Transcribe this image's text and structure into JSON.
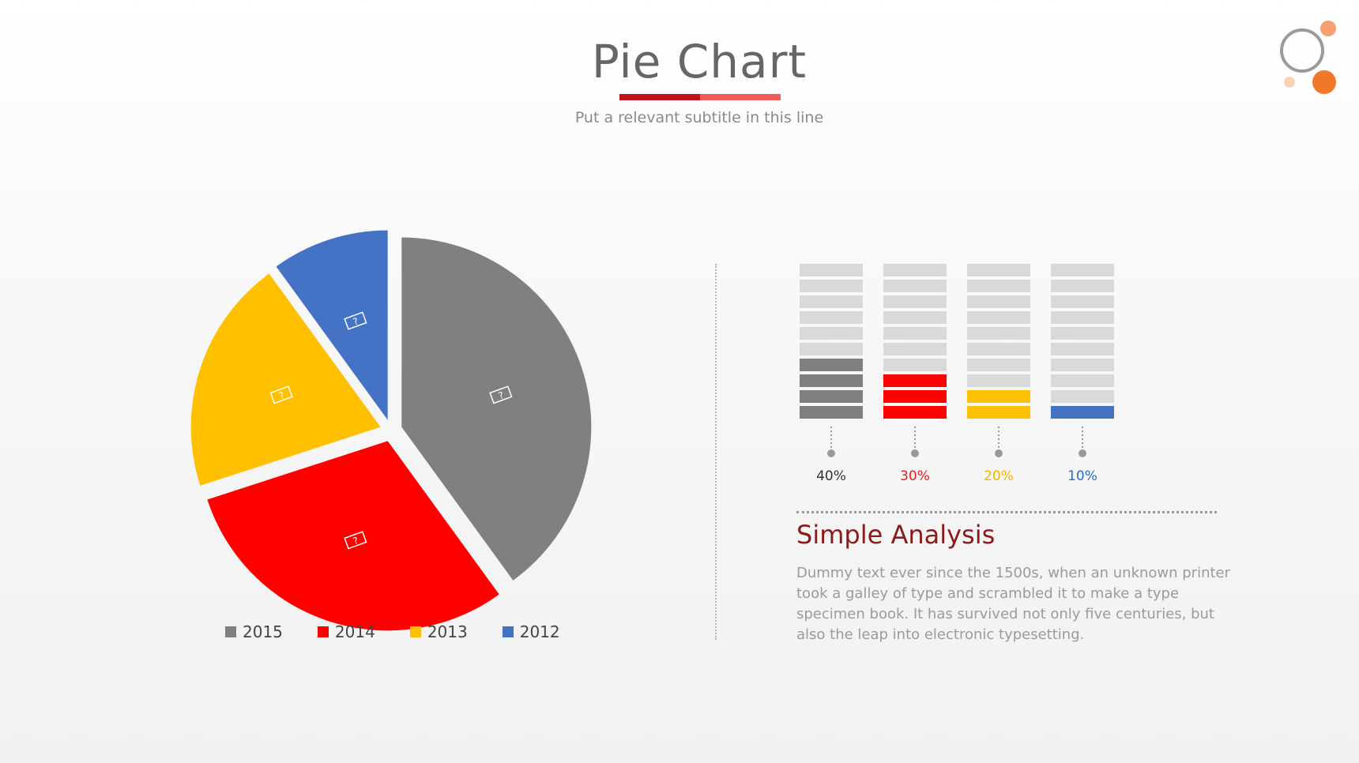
{
  "header": {
    "title": "Pie Chart",
    "subtitle": "Put a relevant subtitle in this line"
  },
  "colors": {
    "gray": "#808080",
    "red": "#ff0000",
    "yellow": "#ffc000",
    "blue": "#4472c4",
    "bar_empty": "#d9d9d9",
    "title_accent_dark": "#c0121b",
    "title_accent_light": "#f25a5a",
    "logo_orange": "#f08030"
  },
  "chart_data": [
    {
      "type": "pie",
      "labels": [
        "2015",
        "2014",
        "2013",
        "2012"
      ],
      "values": [
        40,
        30,
        20,
        10
      ],
      "colors": [
        "#808080",
        "#ff0000",
        "#ffc000",
        "#4472c4"
      ],
      "legend": "bottom"
    },
    {
      "type": "bar",
      "categories": [
        "2015",
        "2014",
        "2013",
        "2012"
      ],
      "values": [
        40,
        30,
        20,
        10
      ],
      "value_labels": [
        "40%",
        "30%",
        "20%",
        "10%"
      ],
      "label_colors": [
        "#333333",
        "#e02020",
        "#f0b400",
        "#2e6bc4"
      ],
      "colors": [
        "#808080",
        "#ff0000",
        "#ffc000",
        "#4472c4"
      ],
      "ylim": [
        0,
        100
      ]
    }
  ],
  "analysis": {
    "title": "Simple Analysis",
    "body": "Dummy text ever since the 1500s, when an unknown printer took a galley of type and scrambled it to make a type specimen book. It has survived not only five centuries, but also the leap into electronic typesetting."
  }
}
